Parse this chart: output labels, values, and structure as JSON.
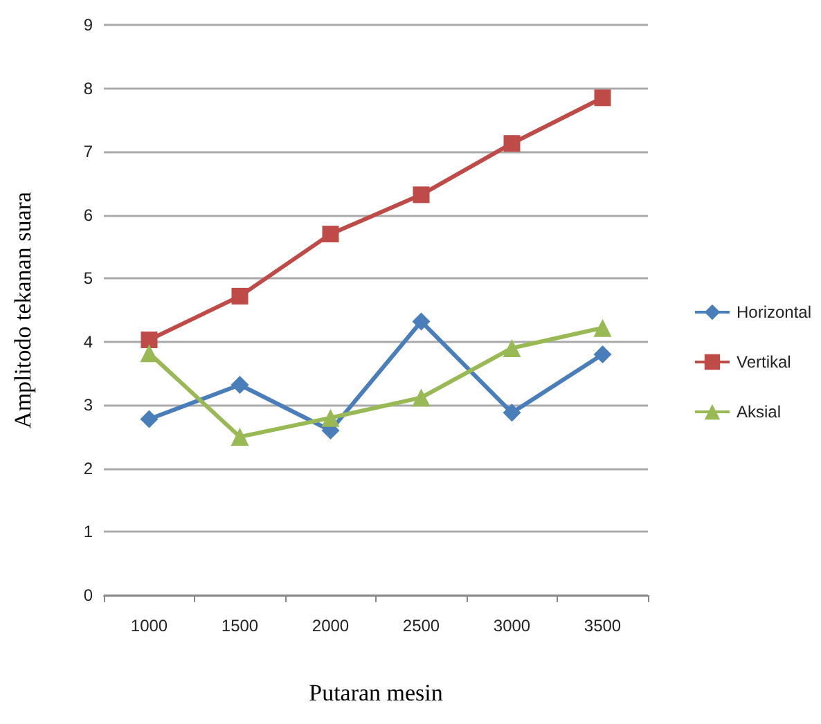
{
  "chart_data": {
    "type": "line",
    "xlabel": "Putaran mesin",
    "ylabel": "Amplitodo tekanan suara",
    "categories": [
      "1000",
      "1500",
      "2000",
      "2500",
      "3000",
      "3500"
    ],
    "series": [
      {
        "name": "Horizontal",
        "color": "#4a7ebb",
        "marker": "diamond",
        "values": [
          2.78,
          3.32,
          2.6,
          4.32,
          2.88,
          3.8
        ]
      },
      {
        "name": "Vertikal",
        "color": "#be4b48",
        "marker": "square",
        "values": [
          4.03,
          4.72,
          5.7,
          6.32,
          7.13,
          7.85
        ]
      },
      {
        "name": "Aksial",
        "color": "#98b954",
        "marker": "triangle",
        "values": [
          3.82,
          2.5,
          2.8,
          3.12,
          3.9,
          4.22
        ]
      }
    ],
    "ylim": [
      0,
      9
    ],
    "yticks": [
      0,
      1,
      2,
      3,
      4,
      5,
      6,
      7,
      8,
      9
    ],
    "grid": "y",
    "legend": "right",
    "line_style": "solid"
  }
}
